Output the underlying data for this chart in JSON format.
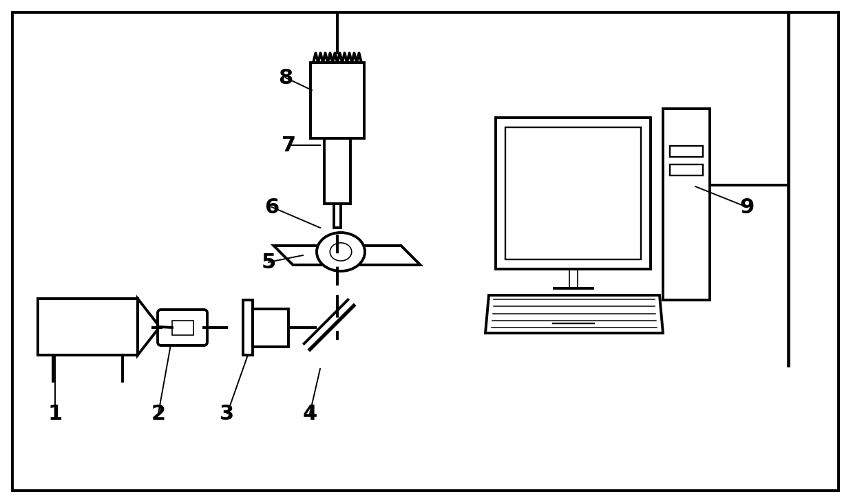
{
  "bg_color": "#ffffff",
  "line_color": "#000000",
  "fig_width": 12.39,
  "fig_height": 7.31,
  "lw": 2.0,
  "lw_thin": 1.2,
  "lw_thick": 2.8
}
